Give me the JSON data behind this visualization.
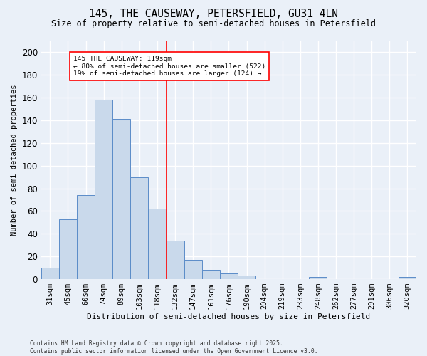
{
  "title1": "145, THE CAUSEWAY, PETERSFIELD, GU31 4LN",
  "title2": "Size of property relative to semi-detached houses in Petersfield",
  "xlabel": "Distribution of semi-detached houses by size in Petersfield",
  "ylabel": "Number of semi-detached properties",
  "footer1": "Contains HM Land Registry data © Crown copyright and database right 2025.",
  "footer2": "Contains public sector information licensed under the Open Government Licence v3.0.",
  "bar_labels": [
    "31sqm",
    "45sqm",
    "60sqm",
    "74sqm",
    "89sqm",
    "103sqm",
    "118sqm",
    "132sqm",
    "147sqm",
    "161sqm",
    "176sqm",
    "190sqm",
    "204sqm",
    "219sqm",
    "233sqm",
    "248sqm",
    "262sqm",
    "277sqm",
    "291sqm",
    "306sqm",
    "320sqm"
  ],
  "bar_values": [
    10,
    53,
    74,
    158,
    141,
    90,
    62,
    34,
    17,
    8,
    5,
    3,
    0,
    0,
    0,
    2,
    0,
    0,
    0,
    0,
    2
  ],
  "bar_color": "#c9d9eb",
  "bar_edge_color": "#5b8cc8",
  "vline_x_index": 6,
  "vline_color": "red",
  "annotation_text": "145 THE CAUSEWAY: 119sqm\n← 80% of semi-detached houses are smaller (522)\n19% of semi-detached houses are larger (124) →",
  "annotation_box_color": "white",
  "annotation_box_edge": "red",
  "ylim": [
    0,
    210
  ],
  "yticks": [
    0,
    20,
    40,
    60,
    80,
    100,
    120,
    140,
    160,
    180,
    200
  ],
  "background_color": "#eaf0f8",
  "grid_color": "#ffffff",
  "title1_fontsize": 10.5,
  "title2_fontsize": 8.5,
  "ylabel_fontsize": 7.5,
  "xlabel_fontsize": 8.0,
  "tick_fontsize": 7.5,
  "ytick_fontsize": 8.5,
  "footer_fontsize": 5.8
}
